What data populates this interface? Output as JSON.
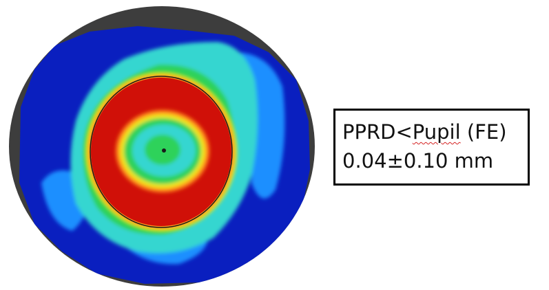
{
  "annotation": {
    "line1_before": "PPRD<",
    "line1_underlined": "Pupil",
    "line1_after": " (FE)",
    "line2": "0.04±0.10 mm"
  },
  "map": {
    "icon": "corneal-topography-map",
    "colors": {
      "border": "#3d3d3d",
      "background": "#0a1fbf",
      "mid": "#1f8fff",
      "cyan": "#35d6d0",
      "green": "#2fd25a",
      "yellow": "#f0e81a",
      "orange": "#ff8a1a",
      "red": "#d01008",
      "outline": "#1a1a1a"
    }
  }
}
